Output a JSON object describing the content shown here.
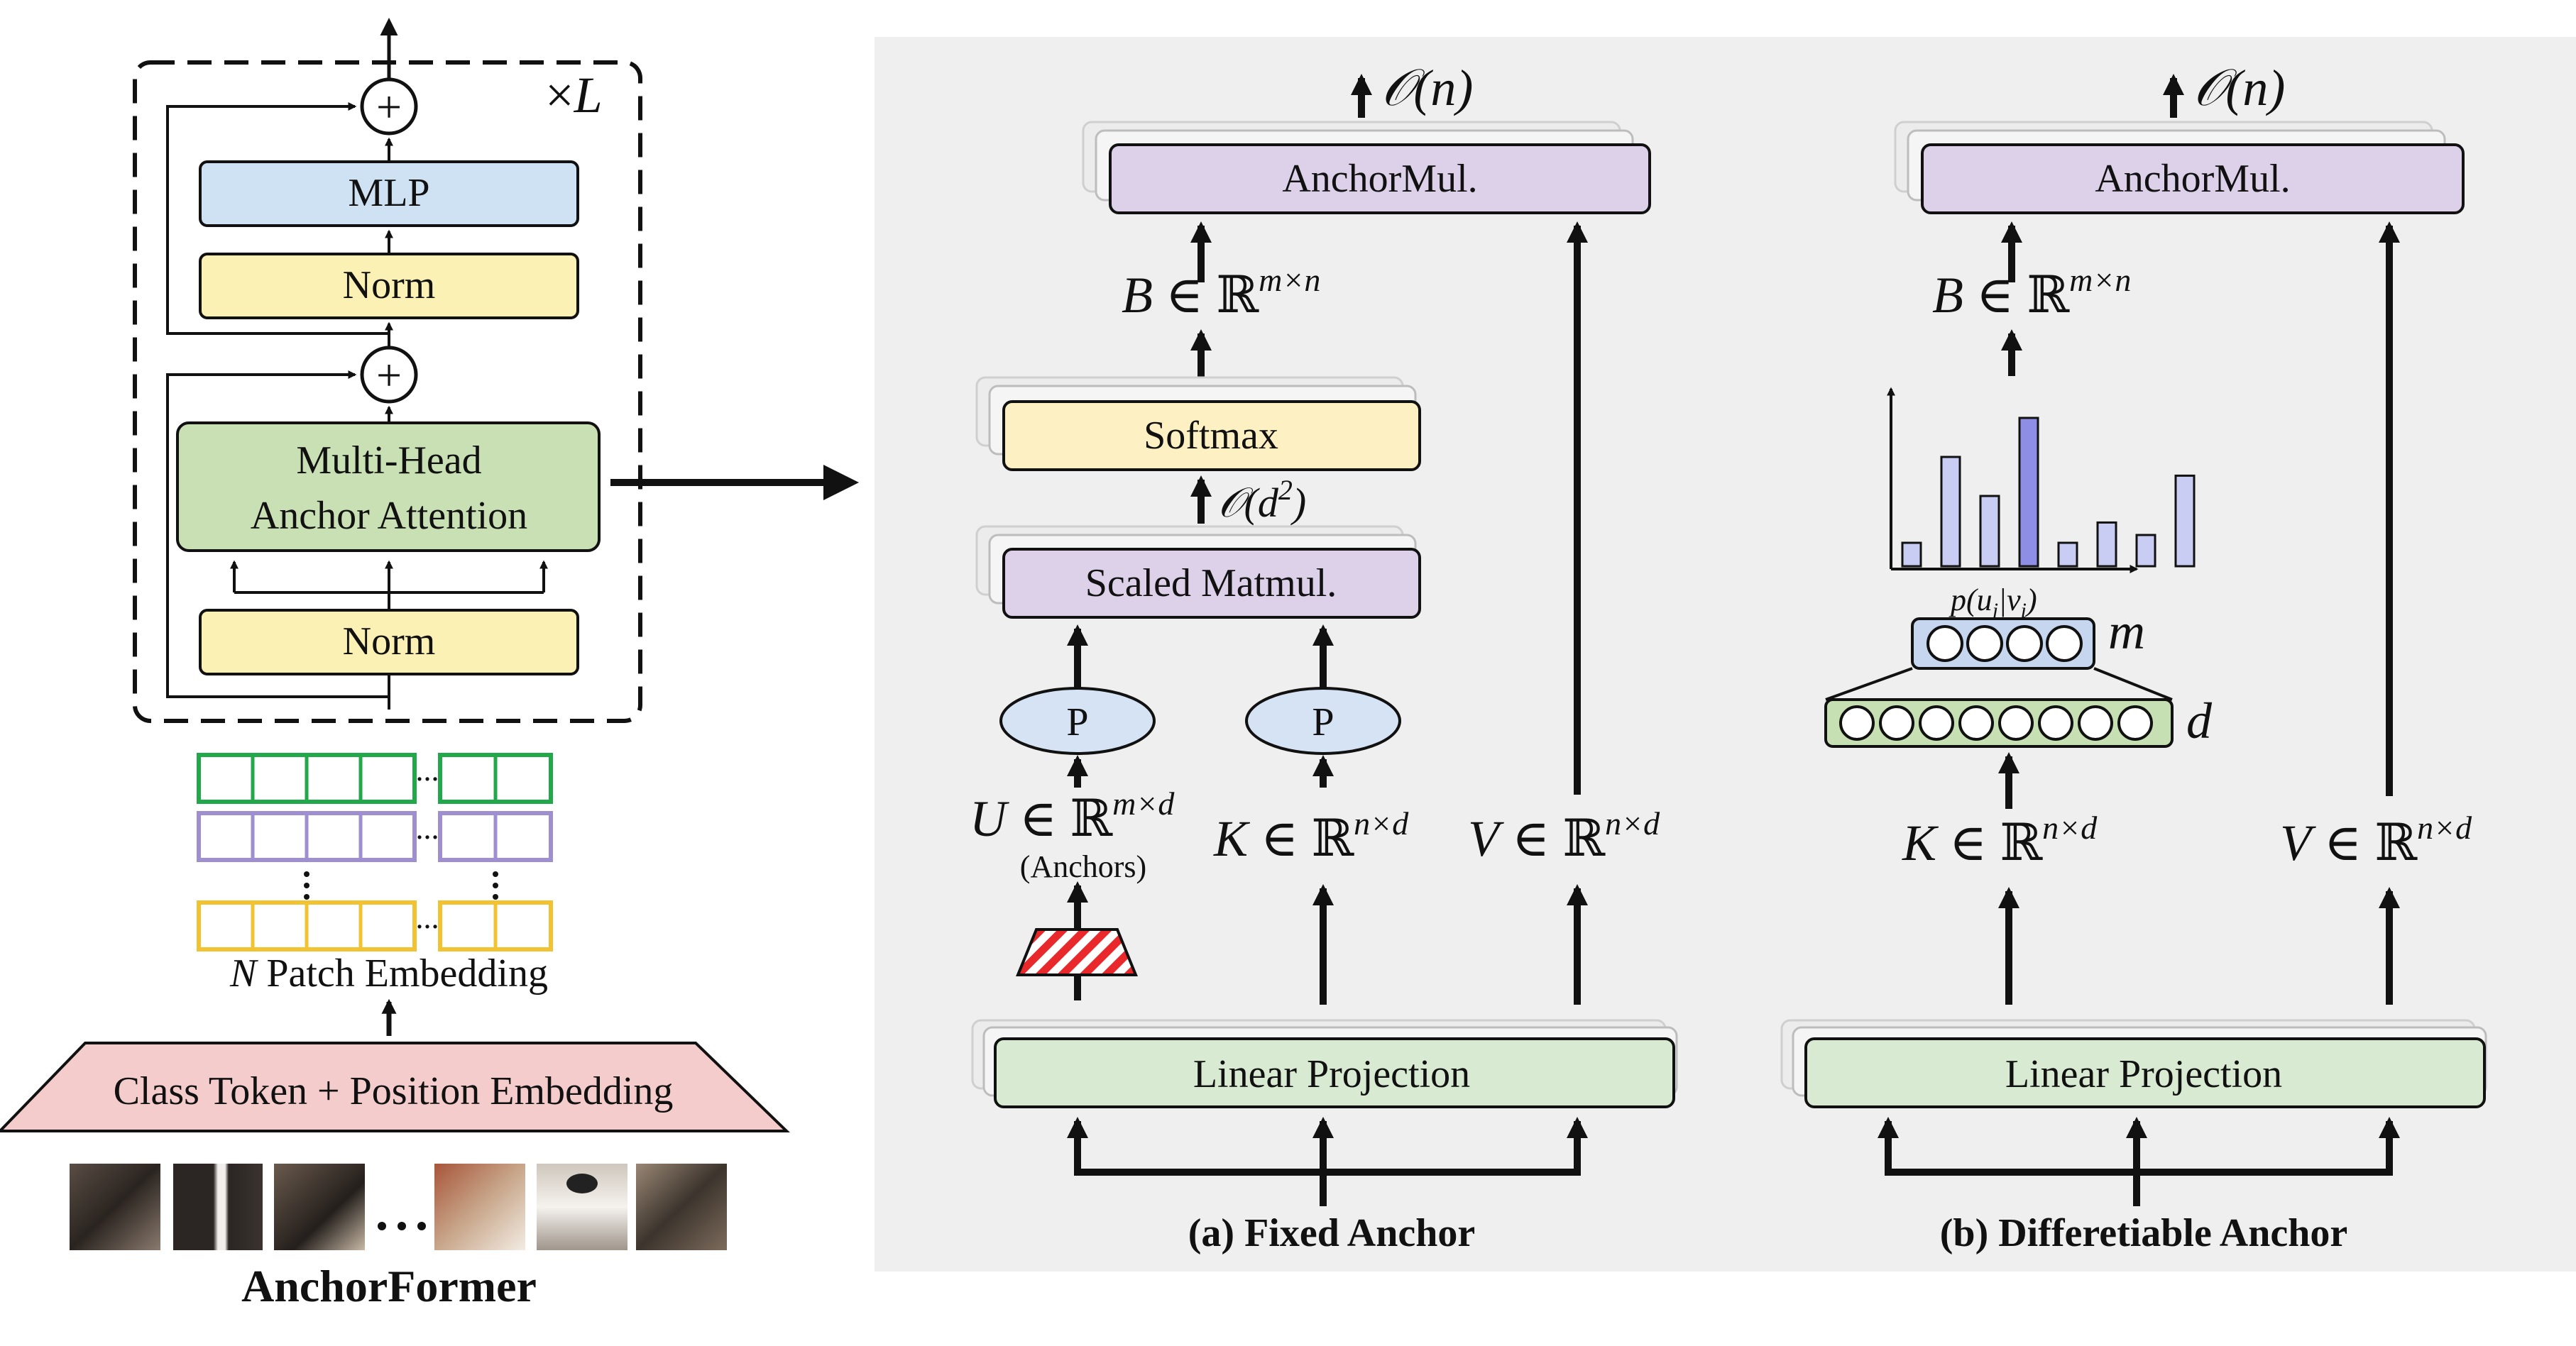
{
  "left": {
    "repeat_label": "×L",
    "repeat_symbol": "×",
    "repeat_var": "L",
    "mlp": "MLP",
    "norm_top": "Norm",
    "attention_line1": "Multi-Head",
    "attention_line2": "Anchor Attention",
    "norm_bottom": "Norm",
    "patch_embedding_var": "N",
    "patch_embedding": "Patch Embedding",
    "class_token": "Class Token + Position Embedding",
    "title": "AnchorFormer",
    "ellipsis": "..."
  },
  "panel_a": {
    "complexity_top": "𝒪(n)",
    "anchormul": "AnchorMul.",
    "b_var": "B",
    "b_space": "∈ ℝ",
    "b_sup": "m×n",
    "softmax": "Softmax",
    "complexity_mid": "𝒪(d",
    "complexity_mid_sup": "2",
    "complexity_mid_close": ")",
    "scaled_matmul": "Scaled Matmul.",
    "p_left": "P",
    "p_right": "P",
    "u_var": "U",
    "u_space": "∈ ℝ",
    "u_sup": "m×d",
    "anchors": "(Anchors)",
    "k_var": "K",
    "k_space": "∈ ℝ",
    "k_sup": "n×d",
    "v_var": "V",
    "v_space": "∈ ℝ",
    "v_sup": "n×d",
    "linear_projection": "Linear Projection",
    "caption": "(a) Fixed Anchor"
  },
  "panel_b": {
    "complexity_top": "𝒪(n)",
    "anchormul": "AnchorMul.",
    "b_var": "B",
    "b_space": "∈ ℝ",
    "b_sup": "m×n",
    "histogram_label": "p(u",
    "histogram_label_sub": "j",
    "histogram_label_mid": "|v",
    "histogram_label_sub2": "i",
    "histogram_label_close": ")",
    "histogram_values": [
      0.15,
      0.7,
      0.45,
      0.95,
      0.15,
      0.28,
      0.2,
      0.58
    ],
    "layer_m": "m",
    "layer_d": "d",
    "k_var": "K",
    "k_space": "∈ ℝ",
    "k_sup": "n×d",
    "v_var": "V",
    "v_space": "∈ ℝ",
    "v_sup": "n×d",
    "linear_projection": "Linear Projection",
    "caption": "(b) Differetiable Anchor"
  },
  "colors": {
    "mlp": "#cfe2f3",
    "norm": "#fbf1b5",
    "attention": "#c9e0b4",
    "patch_green": "#22a84a",
    "patch_purple": "#9f8fd0",
    "patch_yellow": "#f1c232",
    "class_token": "#f4cccc",
    "panel_bg": "#efefef",
    "anchormul": "#dcd1e8",
    "softmax": "#fdf1c4",
    "linear": "#d9ead3",
    "p_ellipse": "#d5e3f5",
    "hist_light": "#c9cdf3",
    "hist_dark": "#8e8ee6",
    "layer_m": "#c5d6ee",
    "layer_d": "#c6e0b4"
  }
}
